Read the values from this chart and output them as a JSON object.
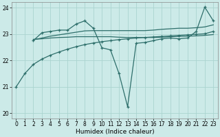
{
  "xlabel": "Humidex (Indice chaleur)",
  "xlim": [
    -0.5,
    23.5
  ],
  "ylim": [
    19.8,
    24.2
  ],
  "yticks": [
    20,
    21,
    22,
    23,
    24
  ],
  "xticks": [
    0,
    1,
    2,
    3,
    4,
    5,
    6,
    7,
    8,
    9,
    10,
    11,
    12,
    13,
    14,
    15,
    16,
    17,
    18,
    19,
    20,
    21,
    22,
    23
  ],
  "bg_color": "#cceae8",
  "grid_color": "#aad4d0",
  "line_color": "#2d6e6a",
  "line1": {
    "x": [
      0,
      1,
      2,
      3,
      4,
      5,
      6,
      7,
      8,
      9,
      10,
      11,
      12,
      13,
      14,
      15,
      16,
      17,
      18,
      19,
      20,
      21,
      22,
      23
    ],
    "y": [
      21.0,
      21.5,
      21.85,
      22.05,
      22.2,
      22.32,
      22.43,
      22.52,
      22.6,
      22.66,
      22.71,
      22.75,
      22.79,
      22.82,
      22.85,
      22.87,
      22.89,
      22.91,
      22.93,
      22.95,
      22.97,
      22.99,
      23.01,
      23.1
    ],
    "marker": true
  },
  "line2": {
    "x": [
      2,
      3,
      4,
      5,
      6,
      7,
      8,
      9,
      10,
      11,
      12,
      13,
      14,
      15,
      16,
      17,
      18,
      19,
      20,
      21,
      22,
      23
    ],
    "y": [
      22.8,
      22.82,
      22.85,
      22.87,
      22.88,
      22.9,
      22.9,
      22.9,
      22.9,
      22.9,
      22.88,
      22.87,
      22.87,
      22.87,
      22.87,
      22.88,
      22.9,
      22.91,
      22.92,
      22.93,
      22.95,
      22.98
    ],
    "marker": false
  },
  "line3": {
    "x": [
      2,
      3,
      4,
      5,
      6,
      7,
      8,
      9,
      10,
      11,
      12,
      13,
      14,
      15,
      16,
      17,
      18,
      19,
      20,
      21,
      22,
      23
    ],
    "y": [
      22.75,
      23.05,
      23.1,
      23.15,
      23.15,
      23.38,
      23.5,
      23.22,
      22.48,
      22.4,
      21.5,
      20.25,
      22.65,
      22.68,
      22.75,
      22.82,
      22.85,
      22.82,
      22.85,
      23.1,
      24.02,
      23.5
    ],
    "marker": true
  },
  "line4": {
    "x": [
      2,
      3,
      4,
      5,
      6,
      7,
      8,
      9,
      10,
      11,
      12,
      13,
      14,
      15,
      16,
      17,
      18,
      19,
      20,
      21,
      22,
      23
    ],
    "y": [
      22.78,
      22.85,
      22.92,
      22.97,
      23.02,
      23.07,
      23.12,
      23.13,
      23.13,
      23.13,
      23.13,
      23.13,
      23.13,
      23.13,
      23.15,
      23.18,
      23.2,
      23.22,
      23.22,
      23.24,
      23.27,
      23.35
    ],
    "marker": false
  }
}
